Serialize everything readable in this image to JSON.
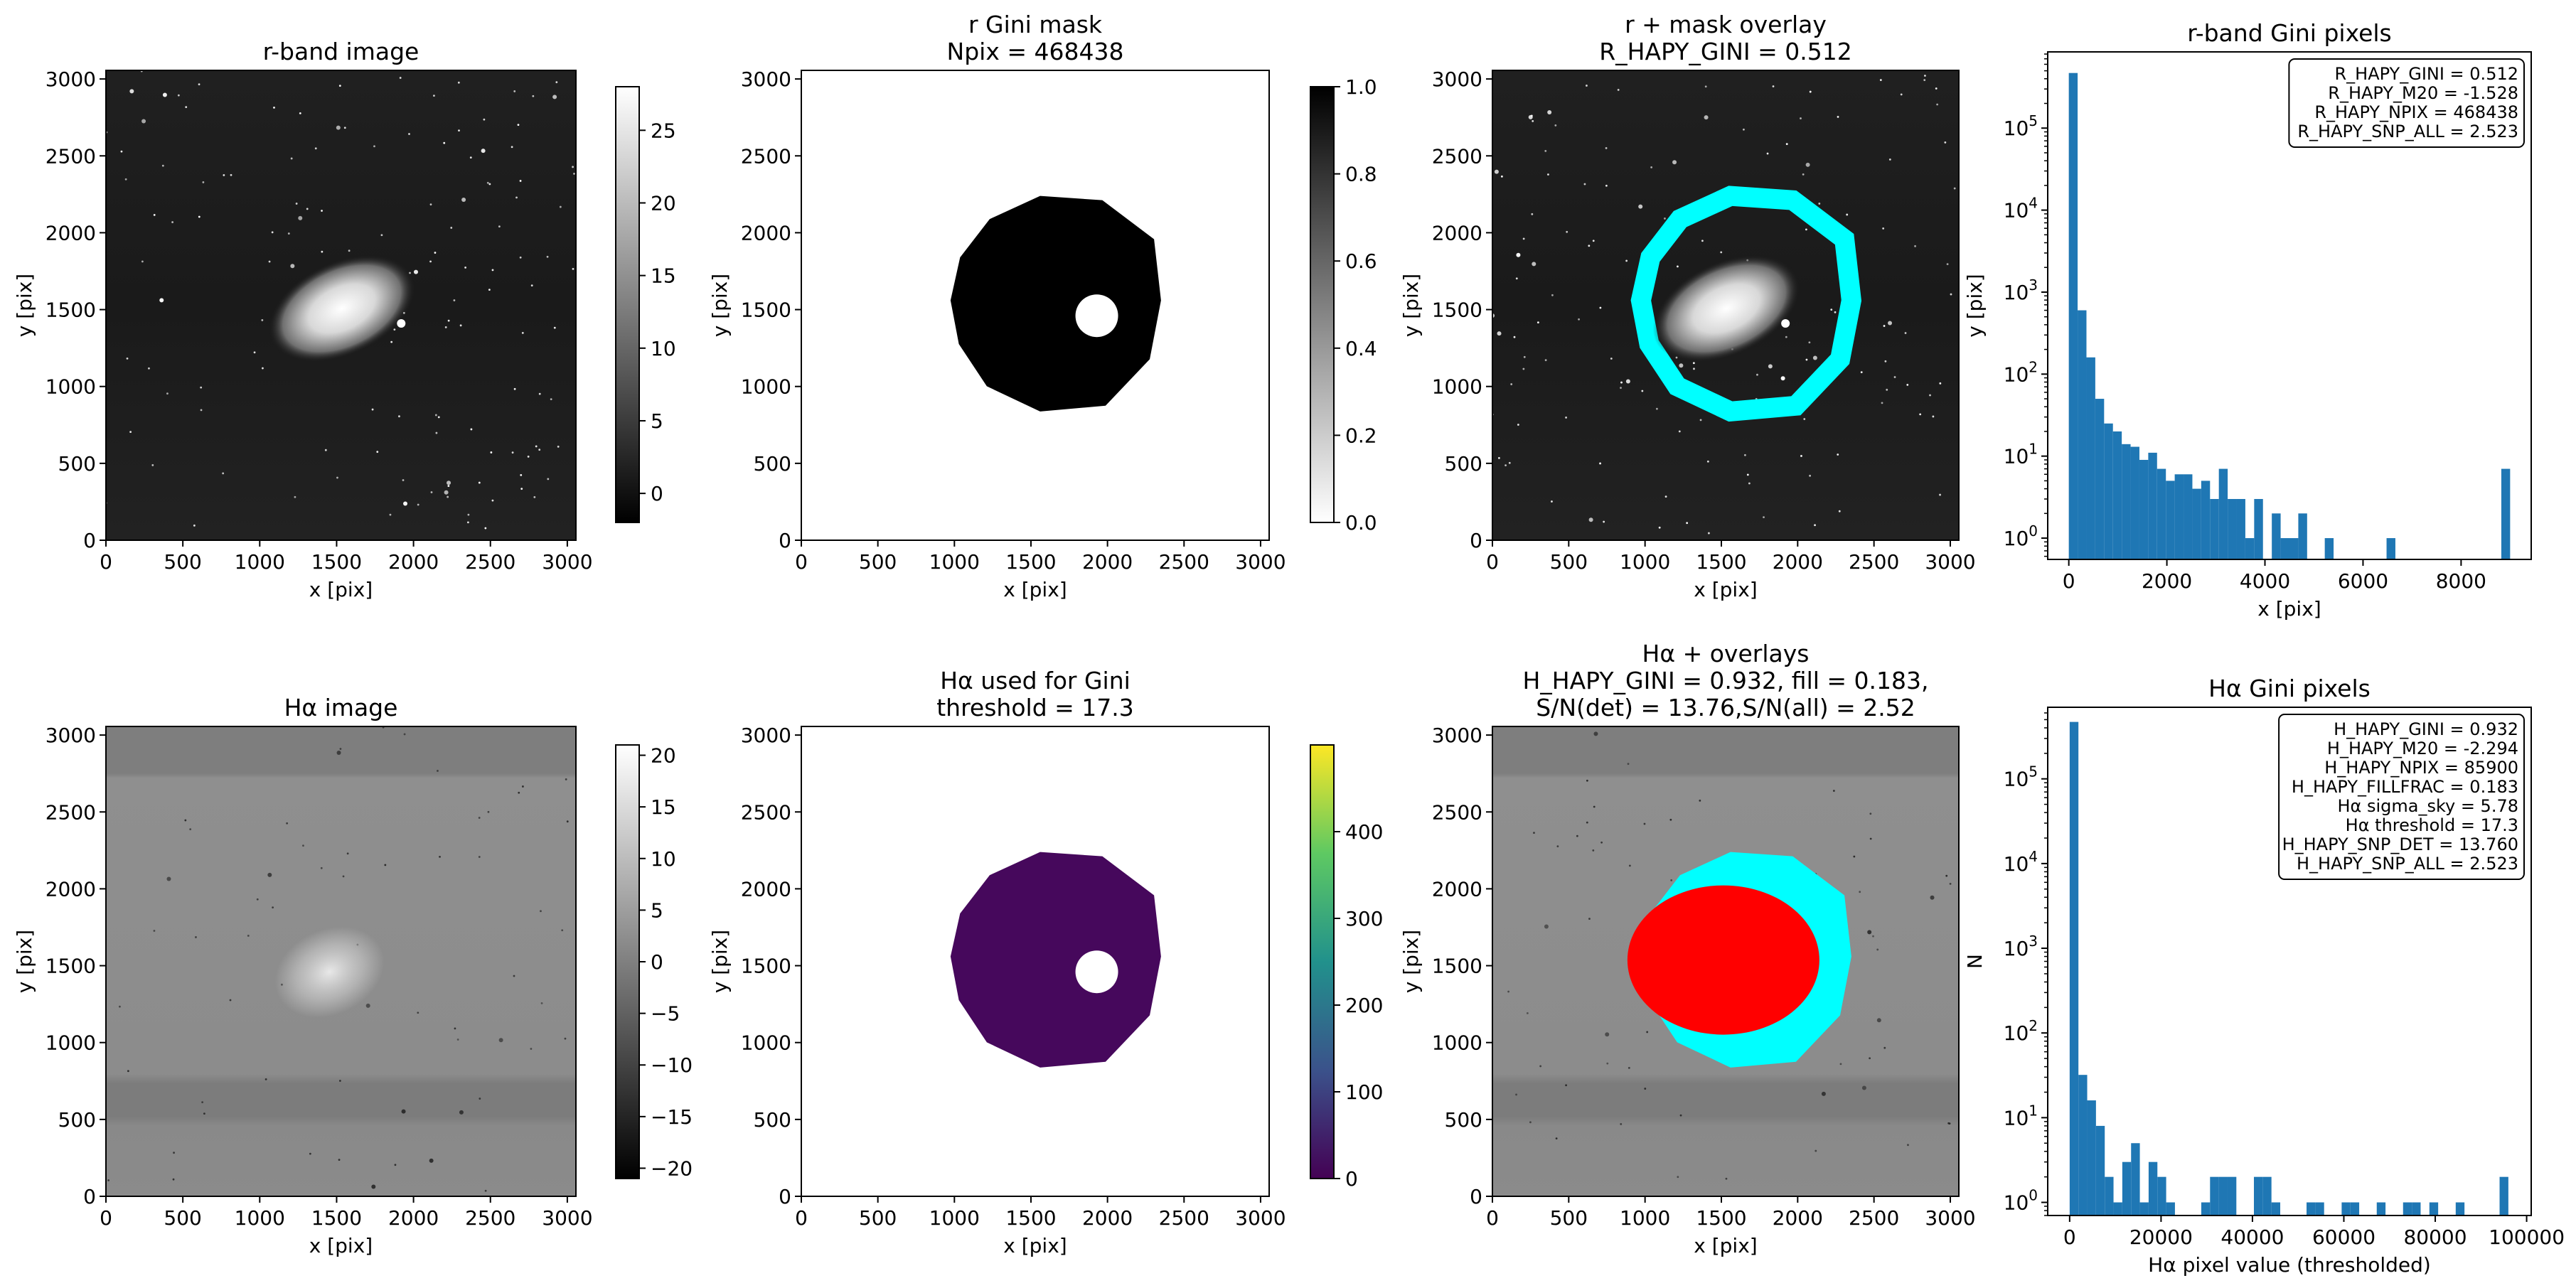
{
  "figure": {
    "background": "#ffffff"
  },
  "chart_data": [
    {
      "id": "p1",
      "type": "heatmap",
      "title": [
        "r-band image"
      ],
      "xlabel": "x [pix]",
      "ylabel": "y [pix]",
      "xlim": [
        0,
        3056
      ],
      "ylim": [
        0,
        3056
      ],
      "xticks": [
        0,
        500,
        1000,
        1500,
        2000,
        2500,
        3000
      ],
      "yticks": [
        0,
        500,
        1000,
        1500,
        2000,
        2500,
        3000
      ],
      "colormap": "gray",
      "colorbar": {
        "range": [
          -2,
          28
        ],
        "ticks": [
          0,
          5,
          10,
          15,
          20,
          25
        ]
      },
      "content": "r-band galaxy image, star field"
    },
    {
      "id": "p2",
      "type": "heatmap",
      "title": [
        "r Gini mask",
        "Npix = 468438"
      ],
      "xlabel": "x [pix]",
      "ylabel": "y [pix]",
      "xlim": [
        0,
        3056
      ],
      "ylim": [
        0,
        3056
      ],
      "xticks": [
        0,
        500,
        1000,
        1500,
        2000,
        2500,
        3000
      ],
      "yticks": [
        0,
        500,
        1000,
        1500,
        2000,
        2500,
        3000
      ],
      "colormap": "gray_r",
      "colorbar": {
        "range": [
          0,
          1
        ],
        "ticks": [
          0.0,
          0.2,
          0.4,
          0.6,
          0.8,
          1.0
        ]
      },
      "content": "binary Gini mask"
    },
    {
      "id": "p3",
      "type": "heatmap",
      "title": [
        "r + mask overlay",
        "R_HAPY_GINI = 0.512"
      ],
      "xlabel": "x [pix]",
      "ylabel": "y [pix]",
      "xlim": [
        0,
        3056
      ],
      "ylim": [
        0,
        3056
      ],
      "xticks": [
        0,
        500,
        1000,
        1500,
        2000,
        2500,
        3000
      ],
      "yticks": [
        0,
        500,
        1000,
        1500,
        2000,
        2500,
        3000
      ],
      "overlay_color": "#00ffff",
      "content": "r-band image with cyan mask outline"
    },
    {
      "id": "p4",
      "type": "bar",
      "title": [
        "r-band Gini pixels"
      ],
      "xlabel": "x [pix]",
      "ylabel": "y [pix]",
      "xlim": [
        -430,
        9430
      ],
      "ylim": [
        0.55,
        850000
      ],
      "yscale": "log",
      "xticks": [
        0,
        2000,
        4000,
        6000,
        8000
      ],
      "yticks": [
        {
          "v": 1,
          "p": "0"
        },
        {
          "v": 10,
          "p": "1"
        },
        {
          "v": 100,
          "p": "2"
        },
        {
          "v": 1000,
          "p": "3"
        },
        {
          "v": 10000,
          "p": "4"
        },
        {
          "v": 100000,
          "p": "5"
        }
      ],
      "bin_start": 0,
      "bin_width": 180,
      "counts": [
        470000,
        600,
        160,
        50,
        25,
        20,
        14,
        13,
        9,
        11,
        7,
        5,
        6,
        6,
        4,
        5,
        3,
        7,
        3,
        3,
        1,
        3,
        0,
        2,
        1,
        1,
        2,
        0,
        0,
        1,
        0,
        0,
        0,
        0,
        0,
        0,
        1,
        0,
        0,
        0,
        0,
        0,
        0,
        0,
        0,
        0,
        0,
        0,
        0,
        7
      ],
      "color": "#1f77b4",
      "legend": [
        "R_HAPY_GINI = 0.512",
        "R_HAPY_M20 = -1.528",
        "R_HAPY_NPIX = 468438",
        "R_HAPY_SNP_ALL = 2.523"
      ]
    },
    {
      "id": "p5",
      "type": "heatmap",
      "title": [
        "Hα image"
      ],
      "xlabel": "x [pix]",
      "ylabel": "y [pix]",
      "xlim": [
        0,
        3056
      ],
      "ylim": [
        0,
        3056
      ],
      "xticks": [
        0,
        500,
        1000,
        1500,
        2000,
        2500,
        3000
      ],
      "yticks": [
        0,
        500,
        1000,
        1500,
        2000,
        2500,
        3000
      ],
      "colormap": "gray",
      "colorbar": {
        "range": [
          -21,
          21
        ],
        "ticks": [
          -20,
          -15,
          -10,
          -5,
          0,
          5,
          10,
          15,
          20
        ]
      },
      "content": "H-alpha image"
    },
    {
      "id": "p6",
      "type": "heatmap",
      "title": [
        "Hα used for Gini",
        "threshold = 17.3"
      ],
      "xlabel": "x [pix]",
      "ylabel": "y [pix]",
      "xlim": [
        0,
        3056
      ],
      "ylim": [
        0,
        3056
      ],
      "xticks": [
        0,
        500,
        1000,
        1500,
        2000,
        2500,
        3000
      ],
      "yticks": [
        0,
        500,
        1000,
        1500,
        2000,
        2500,
        3000
      ],
      "colormap": "viridis",
      "colorbar": {
        "range": [
          0,
          500
        ],
        "ticks": [
          0,
          100,
          200,
          300,
          400
        ]
      },
      "content": "H-alpha pixels inside mask"
    },
    {
      "id": "p7",
      "type": "heatmap",
      "title": [
        "Hα + overlays",
        "H_HAPY_GINI = 0.932, fill = 0.183,",
        "S/N(det) = 13.76,S/N(all) = 2.52"
      ],
      "xlabel": "x [pix]",
      "ylabel": "y [pix]",
      "xlim": [
        0,
        3056
      ],
      "ylim": [
        0,
        3056
      ],
      "xticks": [
        0,
        500,
        1000,
        1500,
        2000,
        2500,
        3000
      ],
      "yticks": [
        0,
        500,
        1000,
        1500,
        2000,
        2500,
        3000
      ],
      "overlay_color": "#00ffff",
      "detect_color": "#ff0000",
      "content": "H-alpha image with cyan mask and red detected pixels"
    },
    {
      "id": "p8",
      "type": "bar",
      "title": [
        "Hα Gini pixels"
      ],
      "xlabel": "Hα pixel value (thresholded)",
      "ylabel": "N",
      "xlim": [
        -4800,
        101000
      ],
      "ylim": [
        0.7,
        700000
      ],
      "yscale": "log",
      "xticks": [
        0,
        20000,
        40000,
        60000,
        80000,
        100000
      ],
      "yticks": [
        {
          "v": 1,
          "p": "0"
        },
        {
          "v": 10,
          "p": "1"
        },
        {
          "v": 100,
          "p": "2"
        },
        {
          "v": 1000,
          "p": "3"
        },
        {
          "v": 10000,
          "p": "4"
        },
        {
          "v": 100000,
          "p": "5"
        }
      ],
      "bin_start": 0,
      "bin_width": 1920,
      "counts": [
        470000,
        32,
        16,
        8,
        2,
        1,
        3,
        5,
        1,
        3,
        2,
        1,
        0,
        0,
        0,
        1,
        2,
        2,
        2,
        0,
        0,
        2,
        2,
        1,
        0,
        0,
        0,
        1,
        1,
        0,
        0,
        1,
        1,
        0,
        0,
        1,
        0,
        0,
        1,
        1,
        0,
        1,
        0,
        0,
        1,
        0,
        0,
        0,
        0,
        2
      ],
      "color": "#1f77b4",
      "legend": [
        "H_HAPY_GINI = 0.932",
        "H_HAPY_M20 = -2.294",
        "H_HAPY_NPIX = 85900",
        "H_HAPY_FILLFRAC = 0.183",
        "Hα sigma_sky = 5.78",
        "Hα threshold = 17.3",
        "H_HAPY_SNP_DET = 13.760",
        "H_HAPY_SNP_ALL = 2.523"
      ]
    }
  ]
}
